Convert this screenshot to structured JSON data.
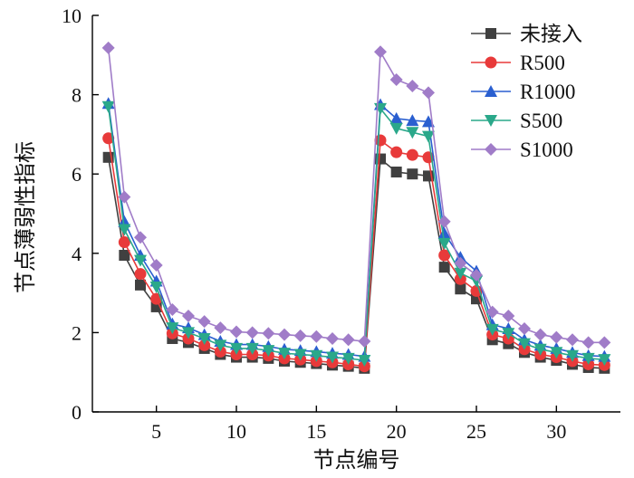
{
  "chart_data": {
    "type": "line",
    "title": "",
    "xlabel": "节点编号",
    "ylabel": "节点薄弱性指标",
    "xlim": [
      1,
      34
    ],
    "ylim": [
      0,
      10
    ],
    "xticks": [
      5,
      10,
      15,
      20,
      25,
      30
    ],
    "yticks": [
      0,
      2,
      4,
      6,
      8,
      10
    ],
    "x": [
      2,
      3,
      4,
      5,
      6,
      7,
      8,
      9,
      10,
      11,
      12,
      13,
      14,
      15,
      16,
      17,
      18,
      19,
      20,
      21,
      22,
      23,
      24,
      25,
      26,
      27,
      28,
      29,
      30,
      31,
      32,
      33
    ],
    "legend_position": "top-right",
    "grid": false,
    "series": [
      {
        "name": "未接入",
        "color": "#404040",
        "marker": "square",
        "values": [
          6.42,
          3.95,
          3.2,
          2.65,
          1.85,
          1.75,
          1.6,
          1.45,
          1.38,
          1.38,
          1.35,
          1.28,
          1.25,
          1.22,
          1.18,
          1.15,
          1.1,
          6.38,
          6.05,
          6.0,
          5.95,
          3.65,
          3.1,
          2.85,
          1.82,
          1.72,
          1.5,
          1.38,
          1.3,
          1.2,
          1.12,
          1.1
        ]
      },
      {
        "name": "R500",
        "color": "#e83a3a",
        "marker": "circle",
        "values": [
          6.9,
          4.28,
          3.48,
          2.85,
          1.98,
          1.85,
          1.68,
          1.52,
          1.45,
          1.45,
          1.42,
          1.35,
          1.32,
          1.28,
          1.25,
          1.2,
          1.15,
          6.85,
          6.55,
          6.48,
          6.42,
          3.95,
          3.35,
          3.05,
          1.95,
          1.85,
          1.58,
          1.45,
          1.38,
          1.28,
          1.2,
          1.18
        ]
      },
      {
        "name": "R1000",
        "color": "#2a5fd0",
        "marker": "triangle",
        "values": [
          7.78,
          4.8,
          3.95,
          3.3,
          2.22,
          2.12,
          1.95,
          1.78,
          1.7,
          1.7,
          1.65,
          1.58,
          1.55,
          1.52,
          1.48,
          1.45,
          1.4,
          7.75,
          7.4,
          7.35,
          7.32,
          4.5,
          3.9,
          3.55,
          2.2,
          2.1,
          1.82,
          1.68,
          1.6,
          1.5,
          1.42,
          1.4
        ]
      },
      {
        "name": "S500",
        "color": "#2aa88a",
        "marker": "triangle-down",
        "values": [
          7.7,
          4.6,
          3.82,
          3.15,
          2.12,
          2.0,
          1.85,
          1.68,
          1.6,
          1.6,
          1.55,
          1.48,
          1.45,
          1.42,
          1.38,
          1.35,
          1.3,
          7.65,
          7.15,
          7.05,
          6.95,
          4.25,
          3.5,
          3.3,
          2.08,
          1.98,
          1.72,
          1.58,
          1.5,
          1.42,
          1.35,
          1.32
        ]
      },
      {
        "name": "S1000",
        "color": "#a07cc8",
        "marker": "diamond",
        "values": [
          9.18,
          5.42,
          4.4,
          3.7,
          2.58,
          2.42,
          2.28,
          2.12,
          2.02,
          2.0,
          1.98,
          1.95,
          1.92,
          1.9,
          1.85,
          1.82,
          1.78,
          9.08,
          8.38,
          8.22,
          8.05,
          4.8,
          3.75,
          3.45,
          2.52,
          2.42,
          2.1,
          1.95,
          1.88,
          1.82,
          1.75,
          1.75
        ]
      }
    ]
  }
}
